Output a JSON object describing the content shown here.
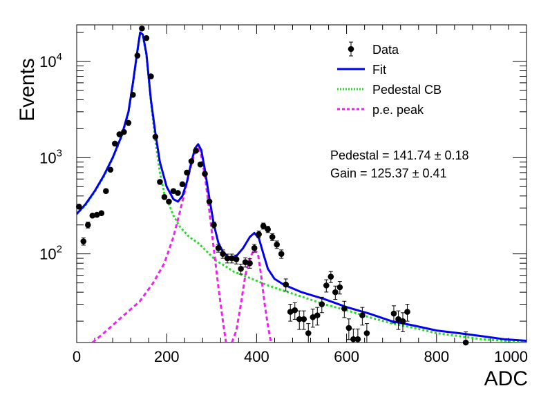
{
  "chart_data": {
    "type": "scatter",
    "xlabel": "ADC",
    "ylabel": "Events",
    "xlim": [
      0,
      1000
    ],
    "ylim": [
      12,
      24000
    ],
    "yscale": "log",
    "grid": false,
    "legend_position": "top-right",
    "x_ticks": [
      0,
      200,
      400,
      600,
      800,
      1000
    ],
    "y_ticks": [
      {
        "value": 100,
        "base": "10",
        "exp": "2"
      },
      {
        "value": 1000,
        "base": "10",
        "exp": "3"
      },
      {
        "value": 10000,
        "base": "10",
        "exp": "4"
      }
    ],
    "legend": [
      {
        "label": "Data",
        "color": "#000000",
        "style": "marker"
      },
      {
        "label": "Fit",
        "color": "#0000ee",
        "style": "solid"
      },
      {
        "label": "Pedestal CB",
        "color": "#22dd22",
        "style": "dotted"
      },
      {
        "label": "p.e. peak",
        "color": "#ee22ee",
        "style": "dashed"
      }
    ],
    "annotations": {
      "pedestal": "Pedestal = 141.74 ± 0.18",
      "gain": "Gain = 125.37 ± 0.41"
    },
    "series": [
      {
        "name": "Data",
        "color": "#000000",
        "points": [
          [
            5,
            310
          ],
          [
            15,
            135
          ],
          [
            25,
            200
          ],
          [
            35,
            250
          ],
          [
            45,
            255
          ],
          [
            55,
            265
          ],
          [
            65,
            450
          ],
          [
            75,
            750
          ],
          [
            85,
            1400
          ],
          [
            95,
            1750
          ],
          [
            105,
            1850
          ],
          [
            115,
            2300
          ],
          [
            125,
            4500
          ],
          [
            135,
            11500
          ],
          [
            145,
            22000
          ],
          [
            155,
            17500
          ],
          [
            165,
            7000
          ],
          [
            175,
            1650
          ],
          [
            185,
            560
          ],
          [
            195,
            390
          ],
          [
            205,
            350
          ],
          [
            215,
            450
          ],
          [
            225,
            430
          ],
          [
            235,
            530
          ],
          [
            245,
            700
          ],
          [
            255,
            920
          ],
          [
            265,
            1180
          ],
          [
            275,
            850
          ],
          [
            285,
            680
          ],
          [
            295,
            350
          ],
          [
            305,
            200
          ],
          [
            315,
            115
          ],
          [
            325,
            100
          ],
          [
            335,
            90
          ],
          [
            345,
            90
          ],
          [
            355,
            88
          ],
          [
            365,
            70
          ],
          [
            375,
            82
          ],
          [
            385,
            80
          ],
          [
            395,
            115
          ],
          [
            405,
            160
          ],
          [
            415,
            195
          ],
          [
            425,
            180
          ],
          [
            435,
            150
          ],
          [
            445,
            125
          ],
          [
            455,
            100
          ],
          [
            465,
            48
          ],
          [
            475,
            25
          ],
          [
            485,
            26
          ],
          [
            495,
            21
          ],
          [
            505,
            21
          ],
          [
            515,
            15
          ],
          [
            525,
            22
          ],
          [
            535,
            23
          ],
          [
            545,
            30
          ],
          [
            555,
            47
          ],
          [
            565,
            58
          ],
          [
            575,
            40
          ],
          [
            585,
            45
          ],
          [
            595,
            27
          ],
          [
            605,
            17
          ],
          [
            615,
            13
          ],
          [
            625,
            13
          ],
          [
            635,
            23
          ],
          [
            645,
            15
          ],
          [
            705,
            24
          ],
          [
            715,
            21
          ],
          [
            725,
            20
          ],
          [
            735,
            25
          ],
          [
            865,
            12
          ]
        ]
      },
      {
        "name": "Fit",
        "color": "#0000ee",
        "points": [
          [
            0,
            260
          ],
          [
            20,
            330
          ],
          [
            40,
            450
          ],
          [
            60,
            650
          ],
          [
            80,
            1000
          ],
          [
            100,
            1700
          ],
          [
            115,
            3000
          ],
          [
            125,
            6000
          ],
          [
            135,
            13000
          ],
          [
            141,
            20000
          ],
          [
            147,
            19000
          ],
          [
            155,
            12000
          ],
          [
            165,
            4000
          ],
          [
            175,
            1800
          ],
          [
            185,
            900
          ],
          [
            200,
            500
          ],
          [
            215,
            370
          ],
          [
            225,
            350
          ],
          [
            235,
            400
          ],
          [
            245,
            560
          ],
          [
            255,
            900
          ],
          [
            263,
            1250
          ],
          [
            270,
            1380
          ],
          [
            277,
            1200
          ],
          [
            285,
            750
          ],
          [
            295,
            380
          ],
          [
            305,
            200
          ],
          [
            315,
            130
          ],
          [
            325,
            105
          ],
          [
            340,
            90
          ],
          [
            355,
            95
          ],
          [
            370,
            115
          ],
          [
            385,
            150
          ],
          [
            395,
            165
          ],
          [
            405,
            145
          ],
          [
            415,
            100
          ],
          [
            425,
            70
          ],
          [
            440,
            55
          ],
          [
            460,
            48
          ],
          [
            500,
            40
          ],
          [
            550,
            34
          ],
          [
            600,
            28
          ],
          [
            650,
            24
          ],
          [
            700,
            20
          ],
          [
            750,
            18
          ],
          [
            800,
            16
          ],
          [
            850,
            15
          ],
          [
            900,
            14
          ],
          [
            950,
            13
          ],
          [
            1000,
            12.5
          ]
        ]
      },
      {
        "name": "Pedestal CB",
        "color": "#22dd22",
        "points": [
          [
            0,
            260
          ],
          [
            20,
            320
          ],
          [
            40,
            440
          ],
          [
            60,
            630
          ],
          [
            80,
            980
          ],
          [
            100,
            1650
          ],
          [
            115,
            2900
          ],
          [
            125,
            5800
          ],
          [
            135,
            12500
          ],
          [
            141,
            19500
          ],
          [
            147,
            18500
          ],
          [
            155,
            11500
          ],
          [
            165,
            3800
          ],
          [
            175,
            1500
          ],
          [
            185,
            700
          ],
          [
            195,
            420
          ],
          [
            205,
            330
          ],
          [
            215,
            250
          ],
          [
            230,
            190
          ],
          [
            250,
            150
          ],
          [
            270,
            130
          ],
          [
            290,
            105
          ],
          [
            310,
            85
          ],
          [
            330,
            75
          ],
          [
            350,
            65
          ],
          [
            370,
            60
          ],
          [
            390,
            55
          ],
          [
            420,
            48
          ],
          [
            450,
            43
          ],
          [
            500,
            36
          ],
          [
            550,
            30
          ],
          [
            600,
            26
          ],
          [
            650,
            22
          ],
          [
            700,
            19
          ],
          [
            750,
            17
          ],
          [
            800,
            15
          ],
          [
            850,
            14
          ],
          [
            900,
            13
          ],
          [
            950,
            12.5
          ],
          [
            1000,
            12
          ]
        ]
      },
      {
        "name": "p.e. peak 1",
        "color": "#ee22ee",
        "points": [
          [
            35,
            12
          ],
          [
            60,
            15
          ],
          [
            100,
            22
          ],
          [
            140,
            32
          ],
          [
            170,
            50
          ],
          [
            195,
            80
          ],
          [
            215,
            150
          ],
          [
            230,
            280
          ],
          [
            245,
            550
          ],
          [
            255,
            850
          ],
          [
            263,
            1150
          ],
          [
            270,
            1250
          ],
          [
            277,
            1050
          ],
          [
            285,
            650
          ],
          [
            295,
            280
          ],
          [
            305,
            110
          ],
          [
            315,
            45
          ],
          [
            325,
            20
          ],
          [
            332,
            12
          ]
        ]
      },
      {
        "name": "p.e. peak 2",
        "color": "#ee22ee",
        "points": [
          [
            345,
            12
          ],
          [
            355,
            16
          ],
          [
            365,
            30
          ],
          [
            375,
            60
          ],
          [
            385,
            90
          ],
          [
            395,
            112
          ],
          [
            403,
            100
          ],
          [
            410,
            60
          ],
          [
            418,
            30
          ],
          [
            425,
            18
          ],
          [
            432,
            12
          ]
        ]
      }
    ]
  }
}
